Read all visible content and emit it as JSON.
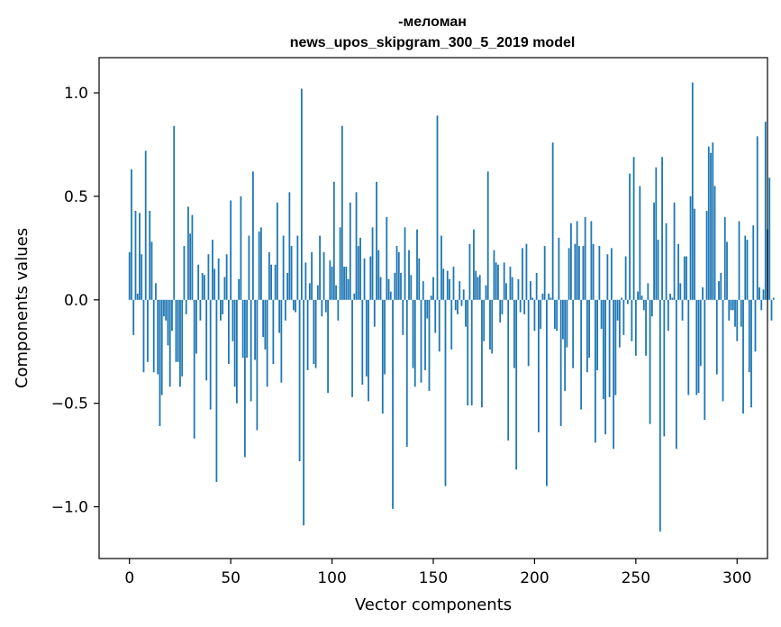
{
  "chart_data": {
    "type": "bar",
    "title_line1": "-меломан",
    "title_line2": "news_upos_skipgram_300_5_2019 model",
    "xlabel": "Vector components",
    "ylabel": "Components values",
    "xlim": [
      -15,
      315
    ],
    "ylim": [
      -1.25,
      1.17
    ],
    "xticks": [
      0,
      50,
      100,
      150,
      200,
      250,
      300
    ],
    "xtick_labels": [
      "0",
      "50",
      "100",
      "150",
      "200",
      "250",
      "300"
    ],
    "yticks": [
      -1.0,
      -0.5,
      0.0,
      0.5,
      1.0
    ],
    "ytick_labels": [
      "−1.0",
      "−0.5",
      "0.0",
      "0.5",
      "1.0"
    ],
    "color": "#1f77b4",
    "values": [
      0.23,
      0.63,
      -0.17,
      0.43,
      0.03,
      0.42,
      0.22,
      -0.35,
      0.72,
      -0.3,
      0.43,
      0.28,
      -0.35,
      0.08,
      -0.36,
      -0.61,
      -0.46,
      -0.08,
      -0.1,
      -0.22,
      -0.42,
      -0.15,
      0.84,
      -0.3,
      -0.3,
      -0.42,
      -0.37,
      0.26,
      -0.07,
      0.45,
      0.32,
      0.41,
      -0.67,
      -0.26,
      0.17,
      -0.1,
      0.13,
      0.12,
      -0.39,
      0.22,
      -0.53,
      0.29,
      0.15,
      -0.88,
      0.2,
      -0.1,
      -0.07,
      0.11,
      0.22,
      -0.31,
      0.48,
      -0.2,
      -0.42,
      -0.5,
      0.1,
      0.5,
      -0.28,
      -0.76,
      -0.28,
      0.31,
      -0.49,
      0.62,
      -0.29,
      -0.63,
      0.33,
      0.35,
      -0.18,
      -0.24,
      -0.42,
      0.23,
      0.17,
      -0.31,
      0.17,
      0.47,
      -0.16,
      -0.4,
      0.31,
      -0.1,
      0.13,
      0.52,
      0.26,
      -0.05,
      -0.06,
      0.31,
      -0.78,
      1.02,
      -1.09,
      0.18,
      -0.34,
      0.08,
      0.23,
      -0.31,
      -0.33,
      0.07,
      0.31,
      -0.08,
      0.23,
      -0.06,
      -0.45,
      0.19,
      0.16,
      0.57,
      0.07,
      -0.1,
      0.35,
      0.84,
      0.16,
      0.16,
      0.1,
      0.47,
      -0.47,
      0.03,
      0.52,
      0.26,
      0.3,
      -0.41,
      0.2,
      -0.37,
      -0.49,
      0.21,
      0.35,
      -0.13,
      0.57,
      0.24,
      0.11,
      -0.55,
      -0.36,
      0.4,
      0.1,
      0.04,
      -1.01,
      0.13,
      0.26,
      0.23,
      0.13,
      -0.17,
      0.35,
      -0.71,
      0.24,
      0.12,
      -0.33,
      -0.42,
      0.34,
      0.2,
      -0.4,
      0.09,
      -0.34,
      -0.09,
      -0.44,
      0.02,
      0.11,
      -0.16,
      0.89,
      -0.25,
      0.31,
      0.15,
      -0.9,
      0.14,
      0.1,
      -0.24,
      0.16,
      -0.05,
      -0.07,
      0.09,
      -0.03,
      0.05,
      -0.13,
      -0.51,
      0.27,
      -0.51,
      0.34,
      0.14,
      0.11,
      0.12,
      -0.52,
      -0.2,
      0.07,
      0.62,
      -0.24,
      -0.26,
      0.24,
      0.18,
      0.17,
      -0.11,
      -0.07,
      0.18,
      0.08,
      -0.68,
      0.16,
      0.11,
      -0.33,
      -0.82,
      0.1,
      -0.06,
      0.25,
      -0.07,
      0.27,
      -0.32,
      0.09,
      0.01,
      -0.15,
      0.13,
      -0.64,
      -0.14,
      0.03,
      0.26,
      -0.9,
      0.03,
      0.01,
      0.76,
      -0.14,
      -0.15,
      0.3,
      -0.61,
      -0.19,
      -0.44,
      -0.23,
      0.25,
      0.37,
      -0.33,
      0.27,
      0.38,
      0.26,
      -0.53,
      0.26,
      0.4,
      -0.35,
      -0.28,
      0.38,
      0.27,
      -0.69,
      -0.34,
      0.26,
      -0.14,
      -0.48,
      -0.65,
      0.22,
      -0.47,
      0.25,
      -0.72,
      -0.46,
      -0.1,
      -0.23,
      0.01,
      -0.17,
      0.21,
      -0.02,
      0.61,
      -0.2,
      0.69,
      -0.27,
      0.04,
      0.55,
      0.02,
      -0.05,
      -0.27,
      0.08,
      -0.6,
      -0.08,
      0.47,
      0.64,
      0.29,
      -1.12,
      0.69,
      -0.66,
      0.37,
      -0.15,
      0.03,
      0.01,
      0.47,
      -0.72,
      0.27,
      0.08,
      -0.1,
      0.21,
      0.21,
      -0.46,
      0.5,
      1.05,
      0.44,
      -0.46,
      -0.45,
      -0.32,
      0.06,
      -0.58,
      0.43,
      0.74,
      0.71,
      0.76,
      0.55,
      -0.36,
      0.09,
      0.13,
      -0.49,
      0.4,
      0.28,
      -0.1,
      -0.05,
      -0.05,
      -0.13,
      -0.2,
      0.38,
      -0.13,
      -0.55,
      0.31,
      0.29,
      -0.35,
      -0.52,
      0.36,
      -0.25,
      0.79,
      0.06,
      -0.05,
      0.05,
      0.86,
      0.34,
      0.59,
      -0.1,
      0.01
    ]
  }
}
